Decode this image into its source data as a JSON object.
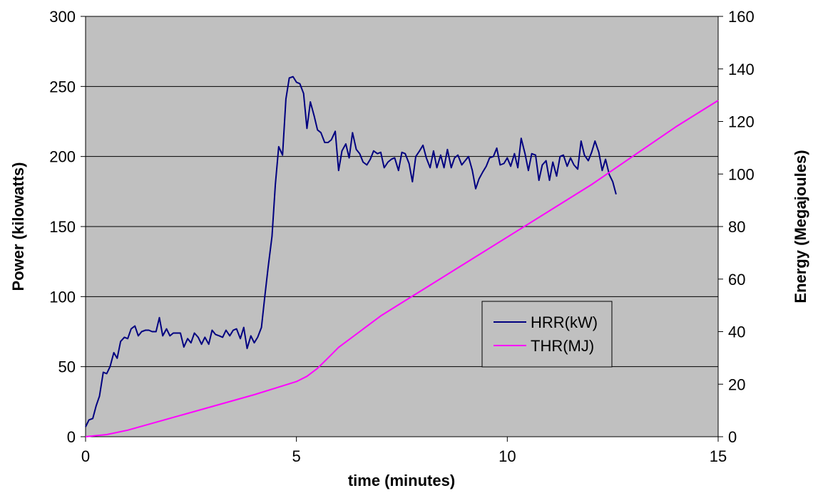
{
  "chart_data": {
    "type": "line",
    "xlabel": "time (minutes)",
    "ylabel_left": "Power (kilowatts)",
    "ylabel_right": "Energy (Megajoules)",
    "xlim": [
      0,
      15
    ],
    "ylim_left": [
      0,
      300
    ],
    "ylim_right": [
      0,
      160
    ],
    "x_ticks": [
      0,
      5,
      10,
      15
    ],
    "y_ticks_left": [
      0,
      50,
      100,
      150,
      200,
      250,
      300
    ],
    "y_ticks_right": [
      0,
      20,
      40,
      60,
      80,
      100,
      120,
      140,
      160
    ],
    "grid": "horizontal",
    "plot_background": "#c0c0c0",
    "legend_position": "lower-right, inside plot",
    "series": [
      {
        "name": "HRR(kW)",
        "axis": "left",
        "color": "#000080",
        "points": [
          [
            0.0,
            7
          ],
          [
            0.08,
            12
          ],
          [
            0.17,
            13
          ],
          [
            0.25,
            22
          ],
          [
            0.33,
            29
          ],
          [
            0.42,
            46
          ],
          [
            0.5,
            45
          ],
          [
            0.58,
            50
          ],
          [
            0.67,
            60
          ],
          [
            0.75,
            56
          ],
          [
            0.83,
            68
          ],
          [
            0.92,
            71
          ],
          [
            1.0,
            70
          ],
          [
            1.08,
            77
          ],
          [
            1.17,
            79
          ],
          [
            1.25,
            72
          ],
          [
            1.33,
            75
          ],
          [
            1.42,
            76
          ],
          [
            1.5,
            76
          ],
          [
            1.58,
            75
          ],
          [
            1.67,
            75
          ],
          [
            1.75,
            85
          ],
          [
            1.83,
            72
          ],
          [
            1.92,
            77
          ],
          [
            2.0,
            72
          ],
          [
            2.08,
            74
          ],
          [
            2.17,
            74
          ],
          [
            2.25,
            74
          ],
          [
            2.33,
            64
          ],
          [
            2.42,
            70
          ],
          [
            2.5,
            67
          ],
          [
            2.58,
            74
          ],
          [
            2.67,
            71
          ],
          [
            2.75,
            66
          ],
          [
            2.83,
            71
          ],
          [
            2.92,
            66
          ],
          [
            3.0,
            76
          ],
          [
            3.08,
            73
          ],
          [
            3.17,
            72
          ],
          [
            3.25,
            71
          ],
          [
            3.33,
            76
          ],
          [
            3.42,
            72
          ],
          [
            3.5,
            76
          ],
          [
            3.58,
            77
          ],
          [
            3.67,
            70
          ],
          [
            3.75,
            78
          ],
          [
            3.83,
            63
          ],
          [
            3.92,
            72
          ],
          [
            4.0,
            67
          ],
          [
            4.08,
            71
          ],
          [
            4.17,
            78
          ],
          [
            4.25,
            100
          ],
          [
            4.33,
            121
          ],
          [
            4.42,
            143
          ],
          [
            4.5,
            180
          ],
          [
            4.58,
            207
          ],
          [
            4.67,
            201
          ],
          [
            4.75,
            241
          ],
          [
            4.83,
            256
          ],
          [
            4.92,
            257
          ],
          [
            5.0,
            253
          ],
          [
            5.08,
            252
          ],
          [
            5.17,
            245
          ],
          [
            5.25,
            220
          ],
          [
            5.33,
            239
          ],
          [
            5.42,
            229
          ],
          [
            5.5,
            219
          ],
          [
            5.58,
            217
          ],
          [
            5.67,
            210
          ],
          [
            5.75,
            210
          ],
          [
            5.83,
            212
          ],
          [
            5.92,
            218
          ],
          [
            6.0,
            190
          ],
          [
            6.08,
            204
          ],
          [
            6.17,
            209
          ],
          [
            6.25,
            199
          ],
          [
            6.33,
            217
          ],
          [
            6.42,
            205
          ],
          [
            6.5,
            202
          ],
          [
            6.58,
            196
          ],
          [
            6.67,
            194
          ],
          [
            6.75,
            198
          ],
          [
            6.83,
            204
          ],
          [
            6.92,
            202
          ],
          [
            7.0,
            203
          ],
          [
            7.08,
            192
          ],
          [
            7.17,
            196
          ],
          [
            7.25,
            198
          ],
          [
            7.33,
            199
          ],
          [
            7.42,
            190
          ],
          [
            7.5,
            203
          ],
          [
            7.58,
            202
          ],
          [
            7.67,
            195
          ],
          [
            7.75,
            182
          ],
          [
            7.83,
            200
          ],
          [
            7.92,
            204
          ],
          [
            8.0,
            208
          ],
          [
            8.08,
            199
          ],
          [
            8.17,
            192
          ],
          [
            8.25,
            204
          ],
          [
            8.33,
            192
          ],
          [
            8.42,
            201
          ],
          [
            8.5,
            192
          ],
          [
            8.58,
            205
          ],
          [
            8.67,
            192
          ],
          [
            8.75,
            199
          ],
          [
            8.83,
            201
          ],
          [
            8.92,
            194
          ],
          [
            9.0,
            197
          ],
          [
            9.08,
            200
          ],
          [
            9.17,
            190
          ],
          [
            9.25,
            177
          ],
          [
            9.33,
            184
          ],
          [
            9.42,
            189
          ],
          [
            9.5,
            193
          ],
          [
            9.58,
            199
          ],
          [
            9.67,
            200
          ],
          [
            9.75,
            206
          ],
          [
            9.83,
            194
          ],
          [
            9.92,
            195
          ],
          [
            10.0,
            199
          ],
          [
            10.08,
            193
          ],
          [
            10.17,
            202
          ],
          [
            10.25,
            192
          ],
          [
            10.33,
            213
          ],
          [
            10.42,
            202
          ],
          [
            10.5,
            190
          ],
          [
            10.58,
            202
          ],
          [
            10.67,
            201
          ],
          [
            10.75,
            183
          ],
          [
            10.83,
            194
          ],
          [
            10.92,
            197
          ],
          [
            11.0,
            183
          ],
          [
            11.08,
            196
          ],
          [
            11.17,
            186
          ],
          [
            11.25,
            200
          ],
          [
            11.33,
            201
          ],
          [
            11.42,
            193
          ],
          [
            11.5,
            199
          ],
          [
            11.58,
            194
          ],
          [
            11.67,
            191
          ],
          [
            11.75,
            211
          ],
          [
            11.83,
            201
          ],
          [
            11.92,
            197
          ],
          [
            12.0,
            203
          ],
          [
            12.08,
            211
          ],
          [
            12.17,
            203
          ],
          [
            12.25,
            190
          ],
          [
            12.33,
            198
          ],
          [
            12.42,
            187
          ],
          [
            12.5,
            182
          ],
          [
            12.58,
            173
          ]
        ]
      },
      {
        "name": "THR(MJ)",
        "axis": "right",
        "color": "#ff00ff",
        "points": [
          [
            0,
            0
          ],
          [
            0.5,
            0.8
          ],
          [
            1,
            2.5
          ],
          [
            2,
            7
          ],
          [
            3,
            11.5
          ],
          [
            4,
            16
          ],
          [
            4.5,
            18.5
          ],
          [
            5,
            21
          ],
          [
            5.25,
            23
          ],
          [
            5.5,
            26
          ],
          [
            5.75,
            30
          ],
          [
            6,
            34
          ],
          [
            6.5,
            40
          ],
          [
            7,
            46
          ],
          [
            7.5,
            51
          ],
          [
            8,
            56
          ],
          [
            9,
            66
          ],
          [
            10,
            76
          ],
          [
            11,
            86
          ],
          [
            12,
            96
          ],
          [
            13,
            107
          ],
          [
            14,
            118
          ],
          [
            15,
            128
          ]
        ]
      }
    ]
  }
}
